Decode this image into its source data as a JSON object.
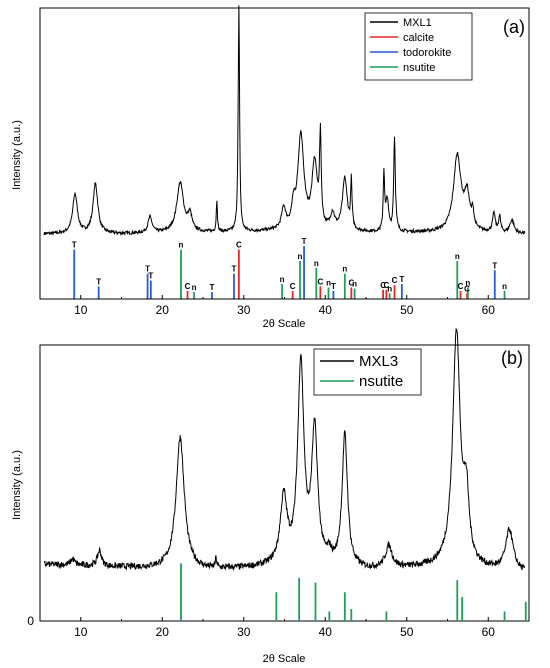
{
  "chart_data": [
    {
      "type": "line",
      "panel_label": "(a)",
      "xlabel": "2θ Scale",
      "ylabel": "Intensity (a.u.)",
      "xlim": [
        5,
        65
      ],
      "x_ticks": [
        10,
        20,
        30,
        40,
        50,
        60
      ],
      "legend": {
        "placement": "top-right",
        "entries": [
          {
            "label": "MXL1",
            "color": "#000000"
          },
          {
            "label": "calcite",
            "color": "#e8262a"
          },
          {
            "label": "todorokite",
            "color": "#2a5bd7"
          },
          {
            "label": "nsutite",
            "color": "#1f9e5a"
          }
        ]
      },
      "series": [
        {
          "name": "MXL1",
          "color": "#000000",
          "background": [
            [
              5,
              0.08
            ],
            [
              15,
              0.08
            ],
            [
              25,
              0.085
            ],
            [
              35,
              0.09
            ],
            [
              45,
              0.085
            ],
            [
              55,
              0.085
            ],
            [
              65,
              0.08
            ]
          ],
          "peaks": [
            {
              "x": 9.3,
              "h": 0.15,
              "w": 0.35
            },
            {
              "x": 11.8,
              "h": 0.19,
              "w": 0.35
            },
            {
              "x": 18.5,
              "h": 0.06,
              "w": 0.3
            },
            {
              "x": 22.2,
              "h": 0.19,
              "w": 0.5
            },
            {
              "x": 23.4,
              "h": 0.06,
              "w": 0.3
            },
            {
              "x": 26.7,
              "h": 0.12,
              "w": 0.08
            },
            {
              "x": 29.4,
              "h": 0.86,
              "w": 0.1
            },
            {
              "x": 34.9,
              "h": 0.08,
              "w": 0.3
            },
            {
              "x": 36.1,
              "h": 0.07,
              "w": 0.25
            },
            {
              "x": 37.0,
              "h": 0.36,
              "w": 0.45
            },
            {
              "x": 38.7,
              "h": 0.25,
              "w": 0.4
            },
            {
              "x": 39.4,
              "h": 0.33,
              "w": 0.12
            },
            {
              "x": 40.9,
              "h": 0.06,
              "w": 0.3
            },
            {
              "x": 42.4,
              "h": 0.2,
              "w": 0.35
            },
            {
              "x": 43.2,
              "h": 0.18,
              "w": 0.1
            },
            {
              "x": 47.2,
              "h": 0.22,
              "w": 0.1
            },
            {
              "x": 47.6,
              "h": 0.12,
              "w": 0.2
            },
            {
              "x": 48.5,
              "h": 0.36,
              "w": 0.12
            },
            {
              "x": 56.2,
              "h": 0.29,
              "w": 0.55
            },
            {
              "x": 57.4,
              "h": 0.13,
              "w": 0.4
            },
            {
              "x": 58.1,
              "h": 0.06,
              "w": 0.15
            },
            {
              "x": 60.7,
              "h": 0.07,
              "w": 0.2
            },
            {
              "x": 61.4,
              "h": 0.06,
              "w": 0.15
            },
            {
              "x": 62.9,
              "h": 0.05,
              "w": 0.3
            }
          ]
        }
      ],
      "reference_lines": {
        "todorokite": {
          "color": "#2a5bd7",
          "letter": "T",
          "lines": [
            {
              "x": 9.2,
              "h": 0.43
            },
            {
              "x": 12.2,
              "h": 0.11
            },
            {
              "x": 18.2,
              "h": 0.22
            },
            {
              "x": 18.6,
              "h": 0.16
            },
            {
              "x": 26.1,
              "h": 0.06
            },
            {
              "x": 28.8,
              "h": 0.22
            },
            {
              "x": 37.4,
              "h": 0.46
            },
            {
              "x": 41.0,
              "h": 0.07
            },
            {
              "x": 49.4,
              "h": 0.13
            },
            {
              "x": 60.8,
              "h": 0.25
            }
          ]
        },
        "calcite": {
          "color": "#e8262a",
          "letter": "C",
          "lines": [
            {
              "x": 23.1,
              "h": 0.07
            },
            {
              "x": 29.4,
              "h": 0.43
            },
            {
              "x": 36.0,
              "h": 0.07
            },
            {
              "x": 39.4,
              "h": 0.11
            },
            {
              "x": 43.2,
              "h": 0.1
            },
            {
              "x": 47.1,
              "h": 0.08
            },
            {
              "x": 47.5,
              "h": 0.08
            },
            {
              "x": 48.5,
              "h": 0.12
            },
            {
              "x": 56.6,
              "h": 0.07
            },
            {
              "x": 57.4,
              "h": 0.05
            }
          ]
        },
        "nsutite": {
          "color": "#1f9e5a",
          "letter": "n",
          "lines": [
            {
              "x": 22.3,
              "h": 0.43
            },
            {
              "x": 23.9,
              "h": 0.06
            },
            {
              "x": 34.7,
              "h": 0.13
            },
            {
              "x": 36.9,
              "h": 0.33
            },
            {
              "x": 38.9,
              "h": 0.27
            },
            {
              "x": 40.4,
              "h": 0.1
            },
            {
              "x": 42.4,
              "h": 0.22
            },
            {
              "x": 43.6,
              "h": 0.09
            },
            {
              "x": 47.9,
              "h": 0.05
            },
            {
              "x": 56.2,
              "h": 0.33
            },
            {
              "x": 57.5,
              "h": 0.1
            },
            {
              "x": 62.0,
              "h": 0.07
            }
          ]
        }
      }
    },
    {
      "type": "line",
      "panel_label": "(b)",
      "xlabel": "2θ Scale",
      "ylabel": "Intensity (a.u.)",
      "xlim": [
        5,
        65
      ],
      "x_ticks": [
        10,
        20,
        30,
        40,
        50,
        60
      ],
      "y_ticks": [
        0
      ],
      "legend": {
        "placement": "top-center",
        "entries": [
          {
            "label": "MXL3",
            "color": "#000000"
          },
          {
            "label": "nsutite",
            "color": "#1f9e5a"
          }
        ]
      },
      "series": [
        {
          "name": "MXL3",
          "color": "#000000",
          "background": [
            [
              5,
              0.18
            ],
            [
              15,
              0.17
            ],
            [
              25,
              0.16
            ],
            [
              35,
              0.17
            ],
            [
              45,
              0.16
            ],
            [
              55,
              0.17
            ],
            [
              65,
              0.15
            ]
          ],
          "peaks": [
            {
              "x": 9.0,
              "h": 0.02,
              "w": 0.3
            },
            {
              "x": 12.3,
              "h": 0.05,
              "w": 0.3
            },
            {
              "x": 22.2,
              "h": 0.42,
              "w": 0.6
            },
            {
              "x": 26.6,
              "h": 0.03,
              "w": 0.1
            },
            {
              "x": 34.9,
              "h": 0.21,
              "w": 0.5
            },
            {
              "x": 37.0,
              "h": 0.64,
              "w": 0.45
            },
            {
              "x": 38.7,
              "h": 0.42,
              "w": 0.45
            },
            {
              "x": 40.5,
              "h": 0.03,
              "w": 0.3
            },
            {
              "x": 42.4,
              "h": 0.42,
              "w": 0.4
            },
            {
              "x": 47.8,
              "h": 0.07,
              "w": 0.5
            },
            {
              "x": 56.1,
              "h": 0.74,
              "w": 0.55
            },
            {
              "x": 57.3,
              "h": 0.2,
              "w": 0.4
            },
            {
              "x": 62.6,
              "h": 0.13,
              "w": 0.55
            }
          ]
        }
      ],
      "reference_lines": {
        "nsutite": {
          "color": "#1f9e5a",
          "lines": [
            {
              "x": 22.3,
              "h": 0.24
            },
            {
              "x": 34.0,
              "h": 0.12
            },
            {
              "x": 36.8,
              "h": 0.18
            },
            {
              "x": 38.8,
              "h": 0.16
            },
            {
              "x": 40.5,
              "h": 0.04
            },
            {
              "x": 42.4,
              "h": 0.12
            },
            {
              "x": 43.2,
              "h": 0.05
            },
            {
              "x": 47.5,
              "h": 0.04
            },
            {
              "x": 56.2,
              "h": 0.17
            },
            {
              "x": 56.8,
              "h": 0.1
            },
            {
              "x": 62.0,
              "h": 0.04
            },
            {
              "x": 64.6,
              "h": 0.08
            }
          ]
        }
      }
    }
  ]
}
